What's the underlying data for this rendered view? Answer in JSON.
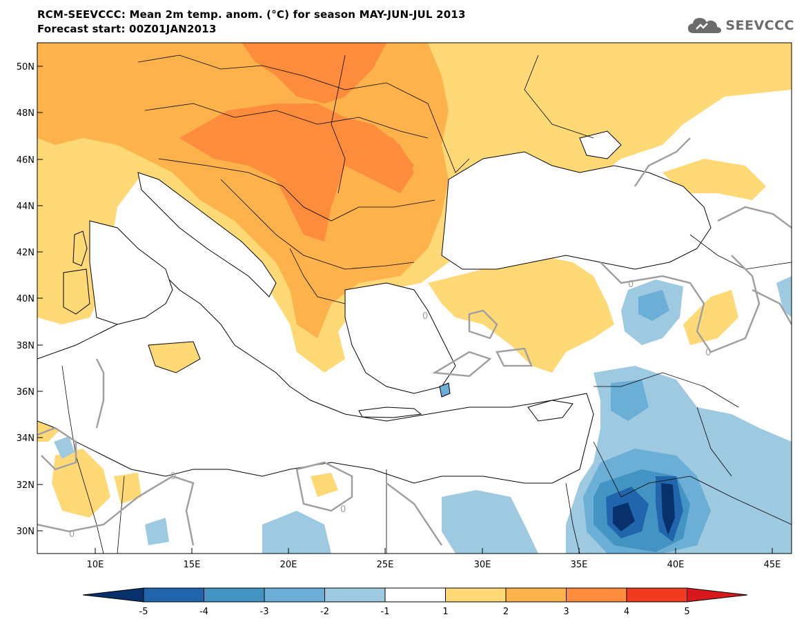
{
  "title_line1": "RCM-SEEVCCC: Mean 2m temp. anom. (°C) for season MAY-JUN-JUL 2013",
  "title_line2": "Forecast start: 00Z01JAN2013",
  "logo_text": "SEEVCCC",
  "lat_labels": [
    "50N",
    "48N",
    "46N",
    "44N",
    "42N",
    "40N",
    "38N",
    "36N",
    "34N",
    "32N",
    "30N"
  ],
  "lon_labels": [
    "10E",
    "15E",
    "20E",
    "25E",
    "30E",
    "35E",
    "40E",
    "45E"
  ],
  "contour_label": "0",
  "colorbar": {
    "labels": [
      "-5",
      "-4",
      "-3",
      "-2",
      "-1",
      "1",
      "2",
      "3",
      "4",
      "5"
    ],
    "colors": [
      "#08306b",
      "#2166ac",
      "#4393c3",
      "#6baed6",
      "#9ecae1",
      "#ffffff",
      "#fed976",
      "#feb24c",
      "#fd8d3c",
      "#f03b20",
      "#d7191c"
    ]
  },
  "chart_data": {
    "type": "heatmap",
    "variable": "Mean 2m temp. anom. (°C)",
    "season": "MAY-JUN-JUL 2013",
    "forecast_start": "00Z01JAN2013",
    "xlim": [
      7,
      46
    ],
    "ylim": [
      29,
      51
    ],
    "x_ticks": [
      10,
      15,
      20,
      25,
      30,
      35,
      40,
      45
    ],
    "y_ticks": [
      30,
      32,
      34,
      36,
      38,
      40,
      42,
      44,
      46,
      48,
      50
    ],
    "color_levels": [
      -5,
      -4,
      -3,
      -2,
      -1,
      1,
      2,
      3,
      4,
      5
    ],
    "regions": [
      {
        "lon": [
          16,
          30
        ],
        "lat": [
          42,
          51
        ],
        "value": 2.5
      },
      {
        "lon": [
          20,
          26
        ],
        "lat": [
          43,
          47
        ],
        "value": 3.2
      },
      {
        "lon": [
          7,
          16
        ],
        "lat": [
          42,
          51
        ],
        "value": 1.8
      },
      {
        "lon": [
          30,
          40
        ],
        "lat": [
          45,
          51
        ],
        "value": 1.5
      },
      {
        "lon": [
          28,
          36
        ],
        "lat": [
          38,
          41
        ],
        "value": 1.3
      },
      {
        "lon": [
          36,
          38
        ],
        "lat": [
          39,
          41
        ],
        "value": -2.5
      },
      {
        "lon": [
          35,
          40
        ],
        "lat": [
          34,
          37
        ],
        "value": -2.3
      },
      {
        "lon": [
          36,
          41
        ],
        "lat": [
          29,
          32
        ],
        "value": -4.5
      },
      {
        "lon": [
          41,
          45
        ],
        "lat": [
          29,
          33
        ],
        "value": -2.2
      },
      {
        "lon": [
          7,
          12
        ],
        "lat": [
          30,
          36
        ],
        "value": 1.3
      }
    ]
  }
}
